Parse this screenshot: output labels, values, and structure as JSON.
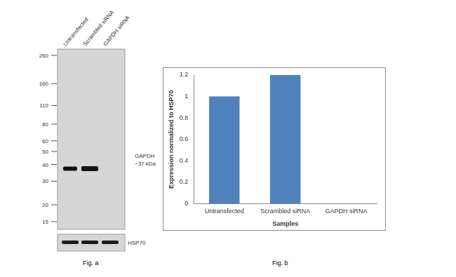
{
  "blot": {
    "lanes": [
      "Untransfected",
      "Scrambled siRNA",
      "GAPDH siRNA"
    ],
    "ladder": [
      260,
      160,
      110,
      80,
      60,
      50,
      40,
      30,
      20,
      15
    ],
    "band_label": [
      "GAPDH",
      "~37 kDa"
    ],
    "loading_control": "HSP70",
    "caption": "Fig. a"
  },
  "chart_data": {
    "type": "bar",
    "caption": "Fig. b",
    "categories": [
      "Untransfected",
      "Scrambled siRNA",
      "GAPDH siRNA"
    ],
    "values": [
      1,
      1.2,
      0
    ],
    "color": "#4f81bd",
    "ylim": [
      0,
      1.2
    ],
    "yticks": [
      0,
      0.2,
      0.4,
      0.6,
      0.8,
      1,
      1.2
    ],
    "grid": false,
    "x_label": "Samples",
    "y_label": "Expression normalized to HSP70"
  }
}
